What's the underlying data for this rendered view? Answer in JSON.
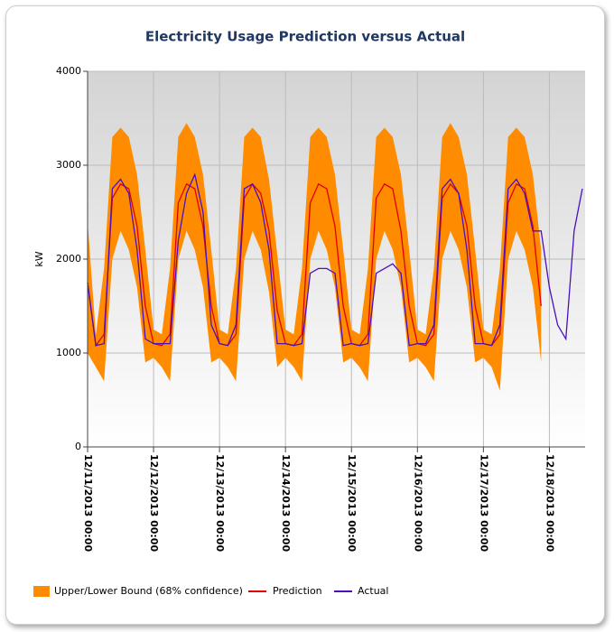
{
  "chart_data": {
    "type": "line",
    "title": "Electricity Usage Prediction versus Actual",
    "y_label": "kW",
    "x": [
      "12/11/2013 00:00",
      "12/11/2013 03:00",
      "12/11/2013 06:00",
      "12/11/2013 09:00",
      "12/11/2013 12:00",
      "12/11/2013 15:00",
      "12/11/2013 18:00",
      "12/11/2013 21:00",
      "12/12/2013 00:00",
      "12/12/2013 03:00",
      "12/12/2013 06:00",
      "12/12/2013 09:00",
      "12/12/2013 12:00",
      "12/12/2013 15:00",
      "12/12/2013 18:00",
      "12/12/2013 21:00",
      "12/13/2013 00:00",
      "12/13/2013 03:00",
      "12/13/2013 06:00",
      "12/13/2013 09:00",
      "12/13/2013 12:00",
      "12/13/2013 15:00",
      "12/13/2013 18:00",
      "12/13/2013 21:00",
      "12/14/2013 00:00",
      "12/14/2013 03:00",
      "12/14/2013 06:00",
      "12/14/2013 09:00",
      "12/14/2013 12:00",
      "12/14/2013 15:00",
      "12/14/2013 18:00",
      "12/14/2013 21:00",
      "12/15/2013 00:00",
      "12/15/2013 03:00",
      "12/15/2013 06:00",
      "12/15/2013 09:00",
      "12/15/2013 12:00",
      "12/15/2013 15:00",
      "12/15/2013 18:00",
      "12/15/2013 21:00",
      "12/16/2013 00:00",
      "12/16/2013 03:00",
      "12/16/2013 06:00",
      "12/16/2013 09:00",
      "12/16/2013 12:00",
      "12/16/2013 15:00",
      "12/16/2013 18:00",
      "12/16/2013 21:00",
      "12/17/2013 00:00",
      "12/17/2013 03:00",
      "12/17/2013 06:00",
      "12/17/2013 09:00",
      "12/17/2013 12:00",
      "12/17/2013 15:00",
      "12/17/2013 18:00",
      "12/17/2013 21:00",
      "12/18/2013 00:00",
      "12/18/2013 03:00",
      "12/18/2013 06:00",
      "12/18/2013 09:00",
      "12/18/2013 12:00"
    ],
    "xlim": [
      "12/11/2013 00:00",
      "12/18/2013 13:00"
    ],
    "xticks": [
      "12/11/2013 00:00",
      "12/12/2013 00:00",
      "12/13/2013 00:00",
      "12/14/2013 00:00",
      "12/15/2013 00:00",
      "12/16/2013 00:00",
      "12/17/2013 00:00",
      "12/18/2013 00:00"
    ],
    "ylim": [
      0,
      4000
    ],
    "yticks": [
      0,
      1000,
      2000,
      3000,
      4000
    ],
    "grid": true,
    "band": {
      "name": "Upper/Lower Bound (68% confidence)",
      "color": "#ff8c00",
      "upper": [
        2400,
        1200,
        1900,
        3300,
        3400,
        3300,
        2900,
        2100,
        1250,
        1200,
        1900,
        3300,
        3450,
        3300,
        2900,
        2100,
        1250,
        1200,
        1900,
        3300,
        3400,
        3300,
        2850,
        2050,
        1250,
        1200,
        1900,
        3300,
        3400,
        3300,
        2900,
        2100,
        1250,
        1200,
        1900,
        3300,
        3400,
        3300,
        2900,
        2100,
        1250,
        1200,
        1900,
        3300,
        3450,
        3300,
        2900,
        2100,
        1250,
        1200,
        1900,
        3300,
        3400,
        3300,
        2900,
        2100,
        null,
        null,
        null,
        null,
        null
      ],
      "lower": [
        1000,
        850,
        700,
        2000,
        2300,
        2100,
        1700,
        900,
        950,
        850,
        700,
        2000,
        2300,
        2100,
        1700,
        900,
        950,
        850,
        700,
        2000,
        2300,
        2100,
        1650,
        850,
        950,
        850,
        700,
        2000,
        2300,
        2100,
        1700,
        900,
        950,
        850,
        700,
        2000,
        2300,
        2100,
        1700,
        900,
        950,
        850,
        700,
        2000,
        2300,
        2100,
        1700,
        900,
        950,
        850,
        600,
        2000,
        2300,
        2100,
        1700,
        900,
        null,
        null,
        null,
        null,
        null
      ]
    },
    "series": [
      {
        "name": "Prediction",
        "color": "#e00000",
        "values": [
          1750,
          1080,
          1200,
          2650,
          2800,
          2750,
          2350,
          1500,
          1100,
          1080,
          1200,
          2600,
          2800,
          2750,
          2350,
          1500,
          1100,
          1080,
          1200,
          2650,
          2800,
          2700,
          2300,
          1450,
          1100,
          1080,
          1200,
          2600,
          2800,
          2750,
          2350,
          1500,
          1100,
          1080,
          1200,
          2650,
          2800,
          2750,
          2300,
          1500,
          1100,
          1080,
          1200,
          2650,
          2800,
          2700,
          2350,
          1500,
          1100,
          1080,
          1200,
          2600,
          2800,
          2750,
          2350,
          1500,
          null,
          null,
          null,
          null,
          null
        ]
      },
      {
        "name": "Actual",
        "color": "#4b0fbf",
        "values": [
          1750,
          1080,
          1100,
          2750,
          2850,
          2700,
          2100,
          1150,
          1100,
          1100,
          1100,
          2200,
          2700,
          2900,
          2500,
          1300,
          1100,
          1080,
          1300,
          2750,
          2800,
          2600,
          2100,
          1100,
          1100,
          1080,
          1100,
          1850,
          1900,
          1900,
          1850,
          1080,
          1100,
          1080,
          1100,
          1850,
          1900,
          1950,
          1850,
          1080,
          1100,
          1100,
          1300,
          2750,
          2850,
          2700,
          2100,
          1100,
          1100,
          1080,
          1300,
          2750,
          2850,
          2700,
          2300,
          2300,
          1700,
          1300,
          1150,
          2300,
          2750
        ]
      }
    ]
  }
}
